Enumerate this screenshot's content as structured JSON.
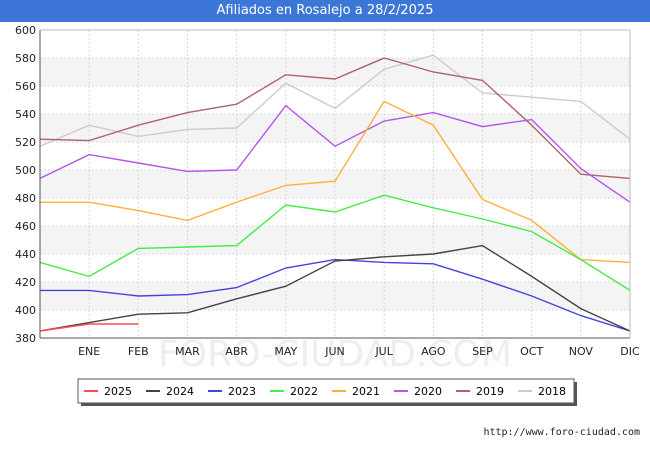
{
  "header": {
    "title": "Afiliados en Rosalejo a 28/2/2025"
  },
  "footer": {
    "source": "http://www.foro-ciudad.com"
  },
  "watermark": "FORO-CIUDAD.COM",
  "chart_data": {
    "type": "line",
    "title": "Afiliados en Rosalejo a 28/2/2025",
    "x": [
      "",
      "ENE",
      "FEB",
      "MAR",
      "ABR",
      "MAY",
      "JUN",
      "JUL",
      "AGO",
      "SEP",
      "OCT",
      "NOV",
      "DIC"
    ],
    "ylim": [
      380,
      600
    ],
    "yticks": [
      380,
      400,
      420,
      440,
      460,
      480,
      500,
      520,
      540,
      560,
      580,
      600
    ],
    "grid": true,
    "legend_position": "bottom",
    "series": [
      {
        "name": "2025",
        "color": "#ff4d4d",
        "values": [
          385,
          390,
          390,
          null,
          null,
          null,
          null,
          null,
          null,
          null,
          null,
          null,
          null
        ]
      },
      {
        "name": "2024",
        "color": "#444444",
        "values": [
          385,
          391,
          397,
          398,
          408,
          417,
          435,
          438,
          440,
          446,
          424,
          401,
          385
        ]
      },
      {
        "name": "2023",
        "color": "#4444dd",
        "values": [
          414,
          414,
          410,
          411,
          416,
          430,
          436,
          434,
          433,
          422,
          410,
          396,
          385
        ]
      },
      {
        "name": "2022",
        "color": "#44ee44",
        "values": [
          434,
          424,
          444,
          445,
          446,
          475,
          470,
          482,
          473,
          465,
          456,
          436,
          414
        ]
      },
      {
        "name": "2021",
        "color": "#ffb03b",
        "values": [
          477,
          477,
          471,
          464,
          477,
          489,
          492,
          549,
          532,
          479,
          464,
          436,
          434
        ]
      },
      {
        "name": "2020",
        "color": "#b455ee",
        "values": [
          494,
          511,
          505,
          499,
          500,
          546,
          517,
          535,
          541,
          531,
          536,
          501,
          477
        ]
      },
      {
        "name": "2019",
        "color": "#b0626a",
        "values": [
          522,
          521,
          532,
          541,
          547,
          568,
          565,
          580,
          570,
          564,
          532,
          497,
          494
        ]
      },
      {
        "name": "2018",
        "color": "#cccccc",
        "values": [
          517,
          532,
          524,
          529,
          530,
          562,
          544,
          572,
          582,
          555,
          552,
          549,
          522
        ]
      }
    ]
  }
}
